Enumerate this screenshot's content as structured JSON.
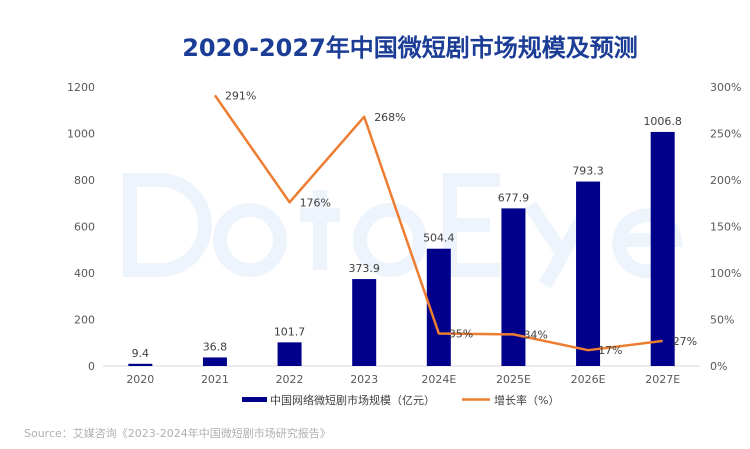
{
  "chart_data": {
    "type": "bar",
    "title": "2020-2027年中国微短剧市场规模及预测",
    "categories": [
      "2020",
      "2021",
      "2022",
      "2023",
      "2024E",
      "2025E",
      "2026E",
      "2027E"
    ],
    "series": [
      {
        "name": "中国网络微短剧市场规模（亿元）",
        "type": "bar",
        "axis": "left",
        "color": "#00008b",
        "values": [
          9.4,
          36.8,
          101.7,
          373.9,
          504.4,
          677.9,
          793.3,
          1006.8
        ],
        "labels": [
          "9.4",
          "36.8",
          "101.7",
          "373.9",
          "504.4",
          "677.9",
          "793.3",
          "1006.8"
        ]
      },
      {
        "name": "增长率（%）",
        "type": "line",
        "axis": "right",
        "color": "#ed7d31",
        "values": [
          null,
          291,
          176,
          268,
          35,
          34,
          17,
          27
        ],
        "labels": [
          "",
          "291%",
          "176%",
          "268%",
          "35%",
          "34%",
          "17%",
          "27%"
        ]
      }
    ],
    "ylim": [
      0,
      1200
    ],
    "yticks": [
      "0",
      "200",
      "400",
      "600",
      "800",
      "1000",
      "1200"
    ],
    "y2lim": [
      0,
      300
    ],
    "y2ticks": [
      "0%",
      "50%",
      "100%",
      "150%",
      "200%",
      "250%",
      "300%"
    ],
    "legend": "bottom",
    "watermark": "DataEye",
    "source": "Source：艾媒咨询《2023-2024年中国微短剧市场研究报告》"
  }
}
